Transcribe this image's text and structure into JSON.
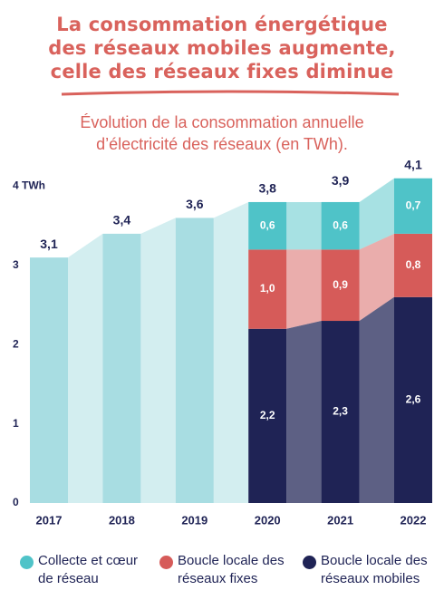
{
  "chart_data": {
    "type": "bar",
    "title": "La consommation énergétique des réseaux mobiles augmente, celle des réseaux fixes diminue",
    "subtitle": "Évolution de la consommation annuelle d’électricité des réseaux (en TWh).",
    "categories": [
      "2017",
      "2018",
      "2019",
      "2020",
      "2021",
      "2022"
    ],
    "totals": {
      "color": "#a8dde2",
      "values": [
        3.1,
        3.4,
        3.6,
        3.8,
        3.9,
        4.1
      ],
      "value_labels": [
        "3,1",
        "3,4",
        "3,6",
        "3,8",
        "3,9",
        "4,1"
      ]
    },
    "series": [
      {
        "name": "Collecte et cœur de réseau",
        "color": "#4fc3c8",
        "values": [
          null,
          null,
          null,
          0.6,
          0.6,
          0.7
        ],
        "value_labels": [
          null,
          null,
          null,
          "0,6",
          "0,6",
          "0,7"
        ]
      },
      {
        "name": "Boucle locale des réseaux fixes",
        "color": "#d65b59",
        "values": [
          null,
          null,
          null,
          1.0,
          0.9,
          0.8
        ],
        "value_labels": [
          null,
          null,
          null,
          "1,0",
          "0,9",
          "0,8"
        ]
      },
      {
        "name": "Boucle locale des réseaux mobiles",
        "color": "#1f2355",
        "values": [
          null,
          null,
          null,
          2.2,
          2.3,
          2.6
        ],
        "value_labels": [
          null,
          null,
          null,
          "2,2",
          "2,3",
          "2,6"
        ]
      }
    ],
    "stacked": true,
    "ylim": [
      0,
      4.2
    ],
    "yticks": [
      0,
      1,
      2,
      3,
      {
        "value": 4,
        "label": "4 TWh"
      }
    ]
  }
}
